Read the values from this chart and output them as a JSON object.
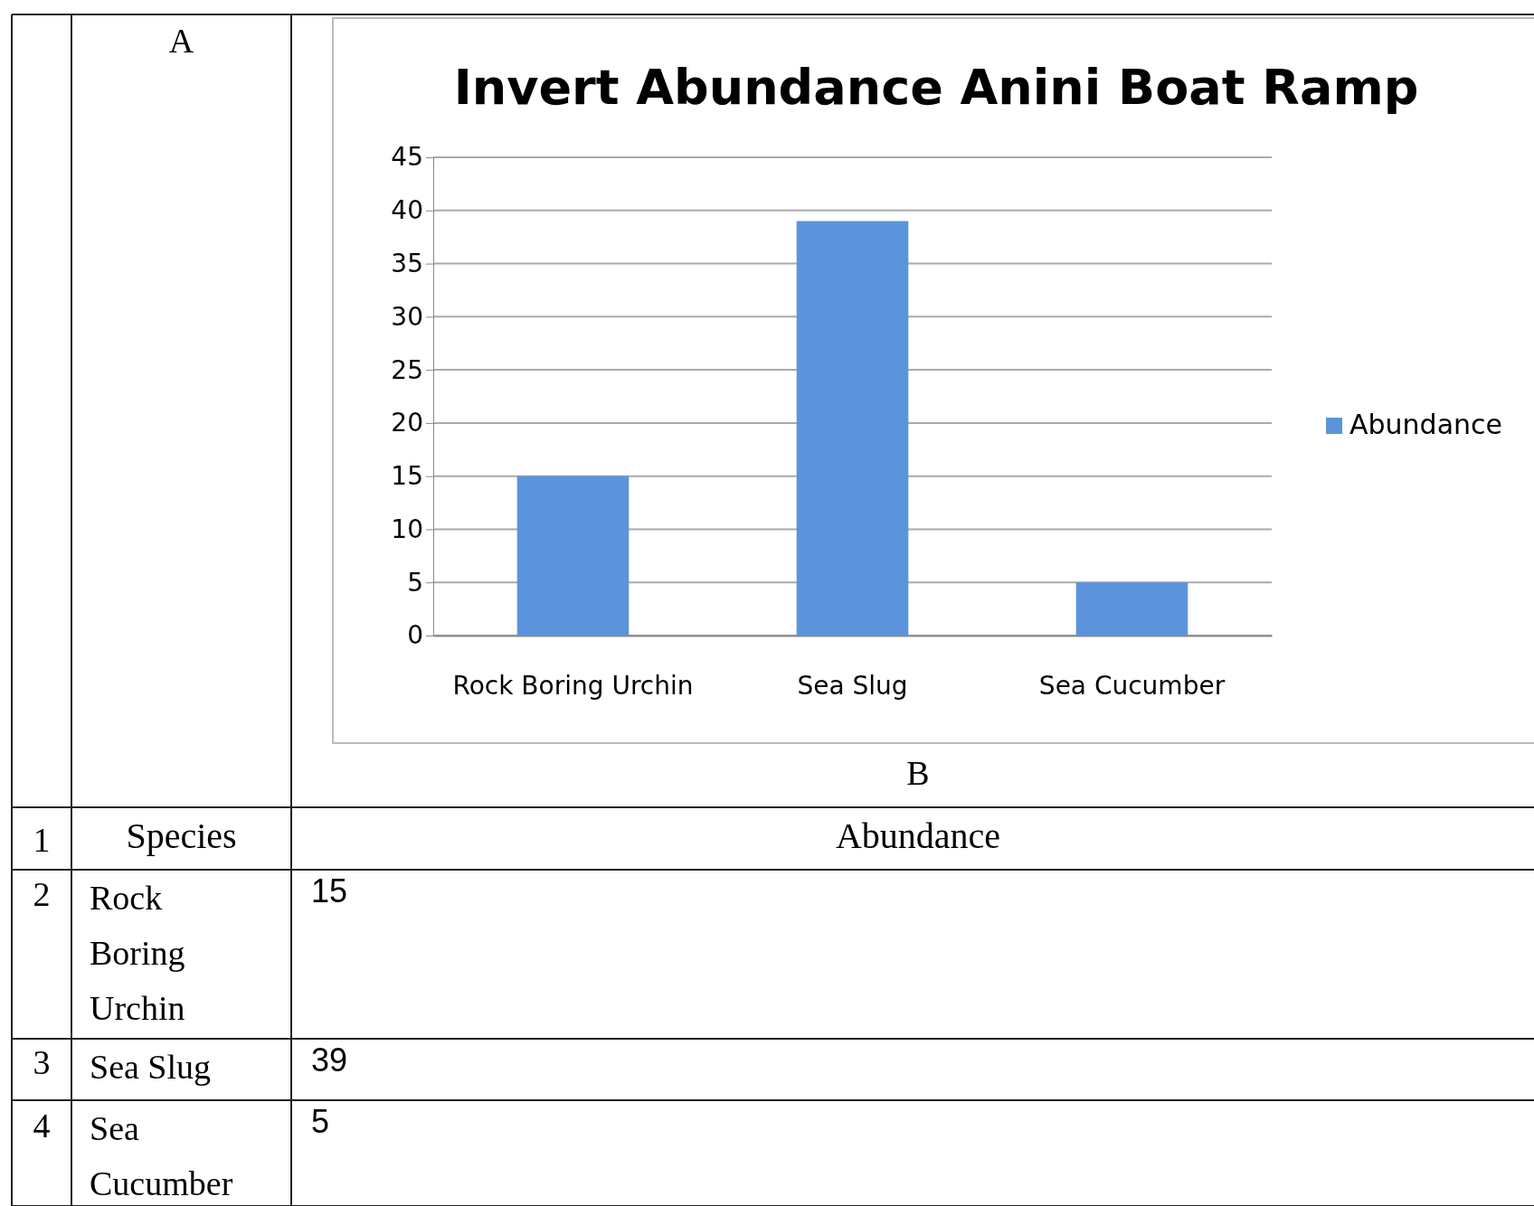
{
  "chart_data": {
    "type": "bar",
    "title": "Invert Abundance Anini Boat Ramp",
    "categories": [
      "Rock Boring Urchin",
      "Sea Slug",
      "Sea Cucumber"
    ],
    "series": [
      {
        "name": "Abundance",
        "color": "#5b94dc",
        "values": [
          15,
          39,
          5
        ]
      }
    ],
    "ylim": [
      0,
      45
    ],
    "yticks": [
      0,
      5,
      10,
      15,
      20,
      25,
      30,
      35,
      40,
      45
    ],
    "grid": "y",
    "legend": "right",
    "annotations": [
      "A",
      "B",
      "1",
      "2",
      "3",
      "4",
      "Species",
      "15",
      "39",
      "5"
    ]
  }
}
